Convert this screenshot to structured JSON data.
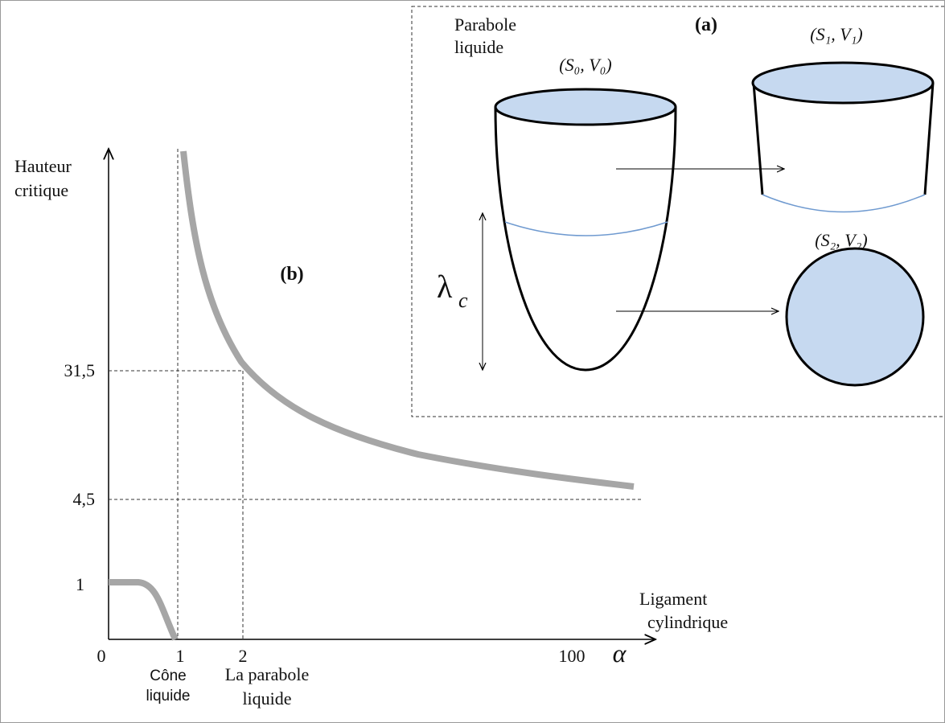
{
  "panel_b": {
    "label": "(b)",
    "y_axis_label": [
      "Hauteur",
      "critique"
    ],
    "y_ticks": [
      "31,5",
      "4,5",
      "1"
    ],
    "x_ticks": [
      "0",
      "1",
      "2",
      "100"
    ],
    "x_axis_symbol": "α",
    "x_axis_label": [
      "Ligament",
      "cylindrique"
    ],
    "annotations": {
      "cone": [
        "Cône",
        "liquide"
      ],
      "parabola": [
        "La parabole",
        "liquide"
      ]
    }
  },
  "panel_a": {
    "label": "(a)",
    "title": [
      "Parabole",
      "liquide"
    ],
    "states": [
      "(S₀, V₀)",
      "(S₁, V₁)",
      "(S₂, V₂)"
    ],
    "length_symbol": "λ",
    "length_subscript": "c"
  }
}
